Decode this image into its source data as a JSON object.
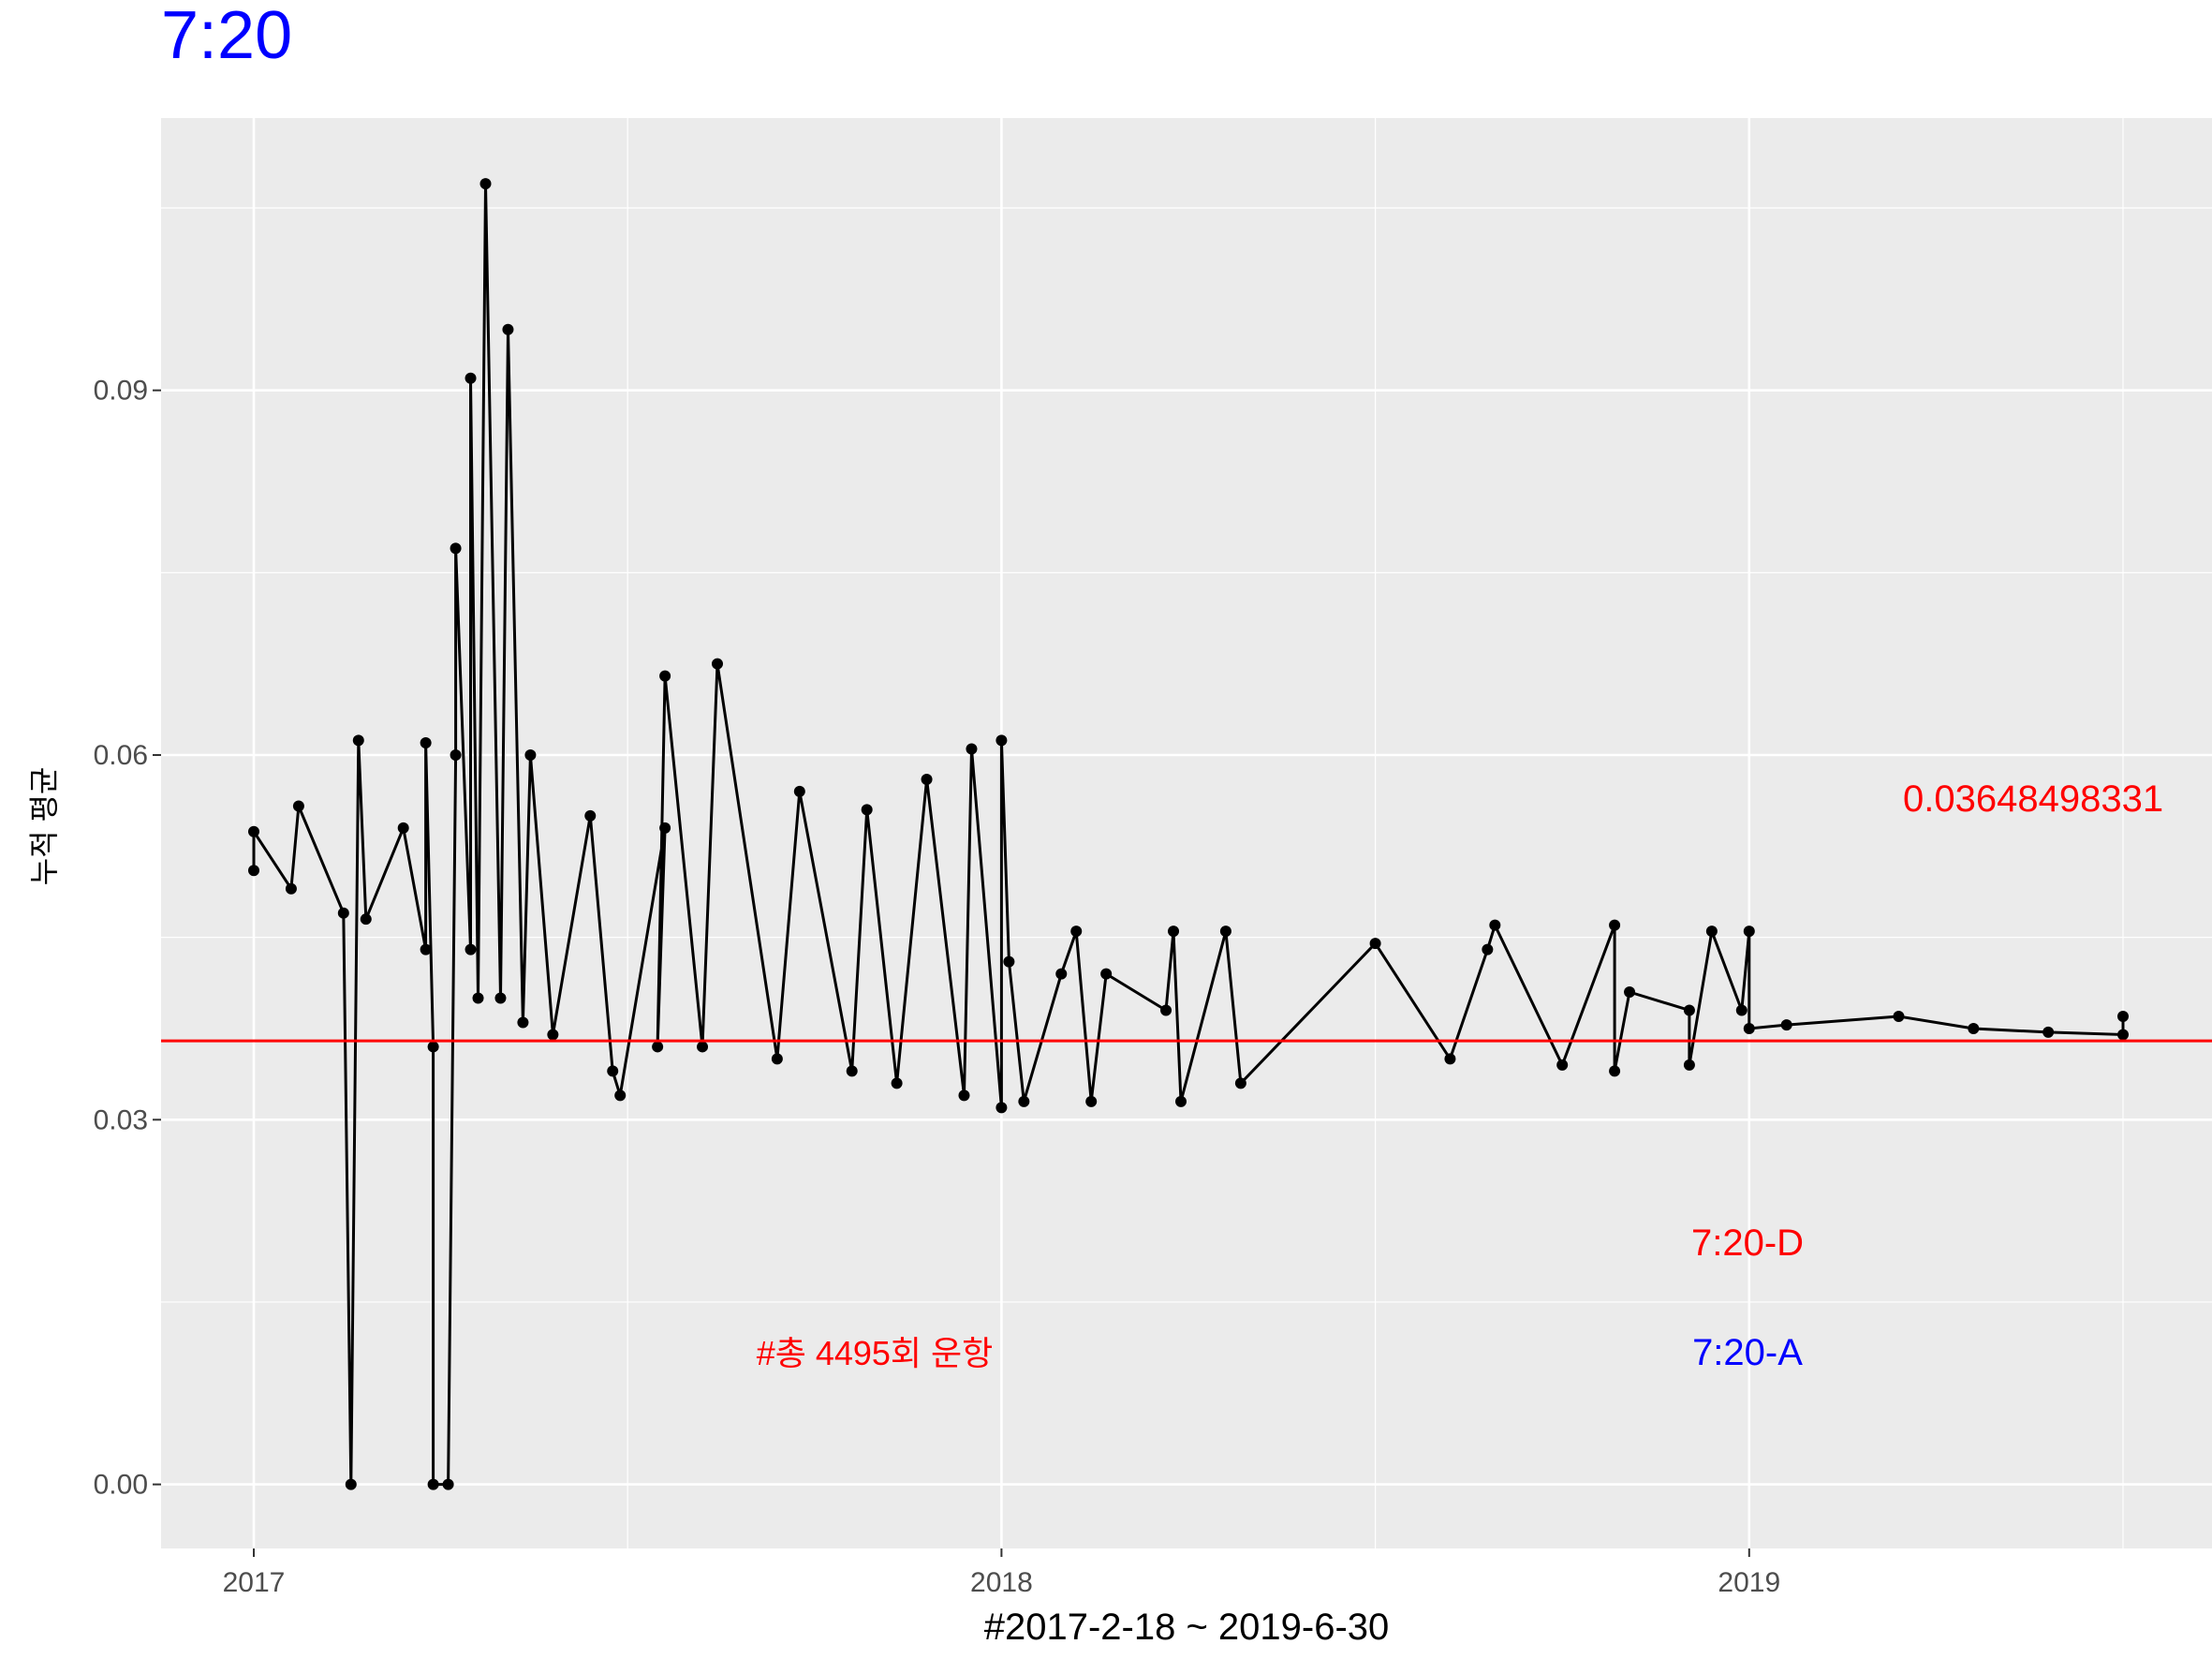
{
  "chart_data": {
    "type": "line",
    "title": "7:20",
    "title_color": "#0000ff",
    "x_label": "#2017-2-18 ~ 2019-6-30",
    "y_label": "누적 평균",
    "x": [
      2017.0,
      2017.0,
      2017.05,
      2017.06,
      2017.12,
      2017.13,
      2017.14,
      2017.15,
      2017.2,
      2017.23,
      2017.23,
      2017.24,
      2017.24,
      2017.26,
      2017.27,
      2017.27,
      2017.29,
      2017.29,
      2017.3,
      2017.31,
      2017.33,
      2017.34,
      2017.36,
      2017.37,
      2017.4,
      2017.45,
      2017.48,
      2017.49,
      2017.55,
      2017.54,
      2017.55,
      2017.6,
      2017.62,
      2017.7,
      2017.73,
      2017.8,
      2017.82,
      2017.86,
      2017.9,
      2017.95,
      2017.96,
      2018.0,
      2018.0,
      2018.01,
      2018.03,
      2018.08,
      2018.1,
      2018.12,
      2018.14,
      2018.22,
      2018.23,
      2018.24,
      2018.3,
      2018.32,
      2018.5,
      2018.6,
      2018.65,
      2018.66,
      2018.75,
      2018.82,
      2018.82,
      2018.84,
      2018.92,
      2018.92,
      2018.95,
      2018.99,
      2019.0,
      2019.0,
      2019.05,
      2019.2,
      2019.3,
      2019.4,
      2019.5,
      2019.5
    ],
    "values": [
      0.0505,
      0.0537,
      0.049,
      0.0558,
      0.047,
      0.0,
      0.0612,
      0.0465,
      0.054,
      0.044,
      0.061,
      0.036,
      0.0,
      0.0,
      0.06,
      0.077,
      0.044,
      0.091,
      0.04,
      0.107,
      0.04,
      0.095,
      0.038,
      0.06,
      0.037,
      0.055,
      0.034,
      0.032,
      0.054,
      0.036,
      0.0665,
      0.036,
      0.0675,
      0.035,
      0.057,
      0.034,
      0.0555,
      0.033,
      0.058,
      0.032,
      0.0605,
      0.031,
      0.0612,
      0.043,
      0.0315,
      0.042,
      0.0455,
      0.0315,
      0.042,
      0.039,
      0.0455,
      0.0315,
      0.0455,
      0.033,
      0.0445,
      0.035,
      0.044,
      0.046,
      0.0345,
      0.046,
      0.034,
      0.0405,
      0.039,
      0.0345,
      0.0455,
      0.039,
      0.0455,
      0.0375,
      0.0378,
      0.0385,
      0.0375,
      0.0372,
      0.037,
      0.0385
    ],
    "color": "#000000",
    "hline": 0.03648498331,
    "hline_color": "#ff0000",
    "annotations": [
      {
        "text": "0.03648498331",
        "color": "#ff0000"
      },
      {
        "text": "7:20-D",
        "color": "#ff0000"
      },
      {
        "text": "7:20-A",
        "color": "#0000ff"
      },
      {
        "text": "#총 4495회 운항",
        "color": "#ff0000"
      }
    ],
    "xlim": [
      2016.876,
      2019.619
    ],
    "xticks": [
      2017,
      2018,
      2019
    ],
    "ylim": [
      -0.00527,
      0.1124
    ],
    "yticks": [
      {
        "value": 0,
        "label": "0.00"
      },
      {
        "value": 0.03,
        "label": "0.03"
      },
      {
        "value": 0.06,
        "label": "0.06"
      },
      {
        "value": 0.09,
        "label": "0.09"
      }
    ],
    "grid": true
  }
}
